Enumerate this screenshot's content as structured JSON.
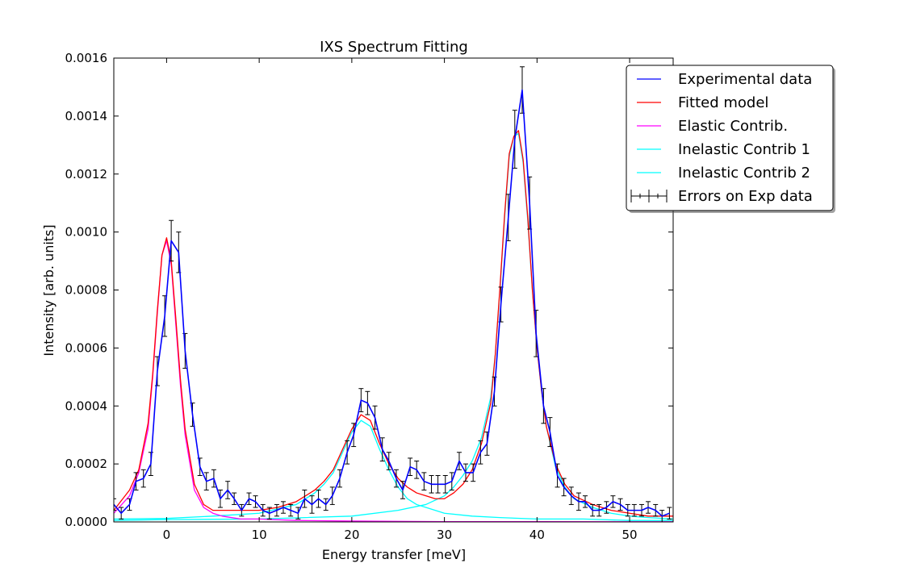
{
  "chart_data": {
    "type": "line",
    "title": "IXS Spectrum Fitting",
    "xlabel": "Energy transfer [meV]",
    "ylabel": "Intensity [arb. units]",
    "xlim": [
      -5.7,
      54.7
    ],
    "ylim": [
      0,
      0.0016
    ],
    "xticks": [
      0,
      10,
      20,
      30,
      40,
      50
    ],
    "yticks": [
      0.0,
      0.0002,
      0.0004,
      0.0006,
      0.0008,
      0.001,
      0.0012,
      0.0014,
      0.0016
    ],
    "xtick_labels": [
      "0",
      "10",
      "20",
      "30",
      "40",
      "50"
    ],
    "ytick_labels": [
      "0.0000",
      "0.0002",
      "0.0004",
      "0.0006",
      "0.0008",
      "0.0010",
      "0.0012",
      "0.0014",
      "0.0016"
    ],
    "grid": false,
    "legend_position": "top-right",
    "colors": {
      "experimental": "#0000ff",
      "fitted": "#ff0000",
      "elastic": "#ff00ff",
      "inelastic1": "#00ffff",
      "inelastic2": "#00ffff",
      "errors": "#000000"
    },
    "legend": [
      {
        "label": "Experimental data",
        "series": "experimental",
        "style": "line"
      },
      {
        "label": "Fitted model",
        "series": "fitted",
        "style": "line"
      },
      {
        "label": "Elastic Contrib.",
        "series": "elastic",
        "style": "line"
      },
      {
        "label": "Inelastic Contrib 1",
        "series": "inelastic1",
        "style": "line"
      },
      {
        "label": "Inelastic Contrib 2",
        "series": "inelastic2",
        "style": "line"
      },
      {
        "label": "Errors on Exp data",
        "series": "errors",
        "style": "errorbar"
      }
    ],
    "experimental": {
      "x": [
        -5.7,
        -4.9,
        -4.0,
        -3.3,
        -2.5,
        -1.7,
        -1.0,
        -0.2,
        0.5,
        1.3,
        2.0,
        2.8,
        3.6,
        4.3,
        5.1,
        5.8,
        6.6,
        7.3,
        8.1,
        8.9,
        9.6,
        10.4,
        11.1,
        11.9,
        12.6,
        13.4,
        14.2,
        14.9,
        15.7,
        16.4,
        17.2,
        17.9,
        18.7,
        19.5,
        20.2,
        21.0,
        21.7,
        22.5,
        23.3,
        24.0,
        24.8,
        25.5,
        26.3,
        27.0,
        27.8,
        28.6,
        29.3,
        30.1,
        30.8,
        31.6,
        32.3,
        33.1,
        33.9,
        34.6,
        35.4,
        36.1,
        36.9,
        37.6,
        38.4,
        39.2,
        39.9,
        40.7,
        41.4,
        42.2,
        42.9,
        43.7,
        44.5,
        45.2,
        46.0,
        46.7,
        47.5,
        48.2,
        49.0,
        49.8,
        50.5,
        51.3,
        52.0,
        52.8,
        53.5,
        54.3
      ],
      "y": [
        6e-05,
        3e-05,
        6e-05,
        0.00014,
        0.00015,
        0.0002,
        0.00052,
        0.00071,
        0.00097,
        0.00093,
        0.00059,
        0.00037,
        0.00019,
        0.00014,
        0.00015,
        8e-05,
        0.00011,
        8e-05,
        4e-05,
        8e-05,
        7e-05,
        4e-05,
        3e-05,
        4e-05,
        5e-05,
        4e-05,
        3e-05,
        8e-05,
        6e-05,
        8e-05,
        6e-05,
        9e-05,
        0.00015,
        0.00024,
        0.0003,
        0.00042,
        0.00041,
        0.00036,
        0.00025,
        0.00021,
        0.00015,
        0.00011,
        0.00019,
        0.00018,
        0.00014,
        0.00013,
        0.00013,
        0.00013,
        0.00014,
        0.00021,
        0.00017,
        0.00017,
        0.00024,
        0.00027,
        0.00045,
        0.00075,
        0.00105,
        0.00132,
        0.00149,
        0.0011,
        0.00065,
        0.0004,
        0.00031,
        0.00016,
        0.00012,
        9e-05,
        7e-05,
        7e-05,
        4e-05,
        4e-05,
        5e-05,
        7e-05,
        6e-05,
        4e-05,
        4e-05,
        4e-05,
        5e-05,
        4e-05,
        2e-05,
        3e-05
      ],
      "err": [
        2e-05,
        2e-05,
        2e-05,
        3e-05,
        3e-05,
        4e-05,
        5e-05,
        7e-05,
        7e-05,
        7e-05,
        6e-05,
        4e-05,
        3e-05,
        3e-05,
        3e-05,
        3e-05,
        3e-05,
        2e-05,
        2e-05,
        2e-05,
        2e-05,
        2e-05,
        2e-05,
        2e-05,
        2e-05,
        2e-05,
        2e-05,
        3e-05,
        3e-05,
        3e-05,
        2e-05,
        3e-05,
        3e-05,
        4e-05,
        4e-05,
        4e-05,
        4e-05,
        4e-05,
        4e-05,
        3e-05,
        3e-05,
        3e-05,
        3e-05,
        3e-05,
        3e-05,
        3e-05,
        3e-05,
        3e-05,
        3e-05,
        3e-05,
        3e-05,
        3e-05,
        4e-05,
        4e-05,
        5e-05,
        6e-05,
        8e-05,
        0.0001,
        8e-05,
        9e-05,
        8e-05,
        6e-05,
        5e-05,
        4e-05,
        3e-05,
        3e-05,
        3e-05,
        2e-05,
        2e-05,
        2e-05,
        2e-05,
        2e-05,
        2e-05,
        2e-05,
        2e-05,
        2e-05,
        2e-05,
        2e-05,
        2e-05,
        2e-05
      ]
    },
    "fitted": {
      "x": [
        -5.7,
        -4,
        -3,
        -2,
        -1.5,
        -1,
        -0.5,
        0,
        0.5,
        1,
        1.5,
        2,
        3,
        4,
        5,
        6,
        8,
        10,
        12,
        14,
        16,
        17,
        18,
        19,
        20,
        21,
        22,
        23,
        24,
        25,
        26,
        27,
        28,
        29,
        30,
        31,
        32,
        33,
        34,
        35,
        35.5,
        36,
        36.5,
        37,
        37.5,
        38,
        38.5,
        39,
        39.5,
        40,
        40.5,
        41,
        42,
        43,
        44,
        46,
        48,
        50,
        52,
        54.7
      ],
      "y": [
        4e-05,
        0.00011,
        0.00018,
        0.00034,
        0.00051,
        0.00073,
        0.00092,
        0.00098,
        0.0009,
        0.0007,
        0.00049,
        0.00032,
        0.00013,
        6e-05,
        4e-05,
        4e-05,
        4e-05,
        4e-05,
        5e-05,
        7e-05,
        0.00011,
        0.00014,
        0.00018,
        0.00025,
        0.00032,
        0.00037,
        0.00035,
        0.00027,
        0.0002,
        0.00015,
        0.00012,
        0.0001,
        9e-05,
        8e-05,
        8e-05,
        0.0001,
        0.00013,
        0.00018,
        0.00027,
        0.00041,
        0.00058,
        0.00081,
        0.00106,
        0.00127,
        0.00133,
        0.00135,
        0.00125,
        0.00105,
        0.0008,
        0.0006,
        0.00045,
        0.00033,
        0.0002,
        0.00013,
        9e-05,
        6e-05,
        4e-05,
        3e-05,
        2e-05,
        2e-05
      ]
    },
    "elastic": {
      "x": [
        -5.7,
        -4,
        -3,
        -2,
        -1.5,
        -1,
        -0.5,
        0,
        0.5,
        1,
        1.5,
        2,
        3,
        4,
        5,
        6,
        8,
        10,
        14,
        20,
        30,
        40,
        54.7
      ],
      "y": [
        3e-05,
        9e-05,
        0.00017,
        0.00032,
        0.0005,
        0.00072,
        0.00092,
        0.00097,
        0.00089,
        0.00068,
        0.00047,
        0.0003,
        0.00011,
        5e-05,
        3e-05,
        2e-05,
        1e-05,
        1e-05,
        5e-06,
        3e-06,
        1e-06,
        1e-06,
        5e-07
      ]
    },
    "inelastic1": {
      "x": [
        -5.7,
        0,
        5,
        10,
        14,
        16,
        17,
        18,
        19,
        20,
        21,
        22,
        23,
        24,
        25,
        26,
        27,
        28,
        30,
        33,
        36,
        40,
        45,
        50,
        54.7
      ],
      "y": [
        1e-05,
        1.2e-05,
        2e-05,
        3e-05,
        6e-05,
        0.0001,
        0.00013,
        0.00017,
        0.00024,
        0.00031,
        0.00035,
        0.00033,
        0.00025,
        0.00018,
        0.00012,
        8e-05,
        6e-05,
        5e-05,
        3e-05,
        2e-05,
        1.5e-05,
        1e-05,
        1e-05,
        5e-06,
        5e-06
      ]
    },
    "inelastic2": {
      "x": [
        -5.7,
        0,
        10,
        20,
        25,
        28,
        30,
        31,
        32,
        33,
        34,
        35,
        35.5,
        36,
        36.5,
        37,
        37.5,
        38,
        38.5,
        39,
        39.5,
        40,
        40.5,
        41,
        42,
        43,
        44,
        46,
        48,
        50,
        52,
        54.7
      ],
      "y": [
        5e-06,
        8e-06,
        1e-05,
        2e-05,
        4e-05,
        6e-05,
        9e-05,
        0.00012,
        0.00016,
        0.00021,
        0.00029,
        0.00043,
        0.00058,
        0.0008,
        0.00105,
        0.00126,
        0.00133,
        0.00134,
        0.00124,
        0.00104,
        0.0008,
        0.0006,
        0.00045,
        0.00033,
        0.00019,
        0.00012,
        8e-05,
        5e-05,
        3e-05,
        2e-05,
        1.5e-05,
        1e-05
      ]
    }
  }
}
